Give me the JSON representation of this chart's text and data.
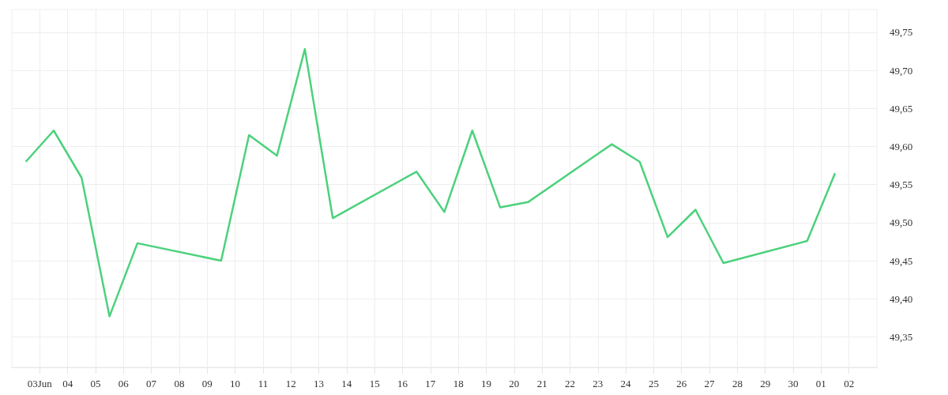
{
  "chart_data": {
    "type": "line",
    "x": [
      "--06-02T12:00",
      "--06-03T12:00",
      "--06-04T12:00",
      "--06-05T12:00",
      "--06-06T12:00",
      "--06-09T12:00",
      "--06-10T12:00",
      "--06-11T12:00",
      "--06-12T12:00",
      "--06-13T12:00",
      "--06-16T12:00",
      "--06-17T12:00",
      "--06-18T12:00",
      "--06-19T12:00",
      "--06-20T12:00",
      "--06-23T12:00",
      "--06-24T12:00",
      "--06-25T12:00",
      "--06-26T12:00",
      "--06-27T12:00",
      "--06-30T12:00",
      "--07-01T12:00"
    ],
    "series": [
      {
        "color": "#4cd17c",
        "values": [
          49.58,
          49.621,
          49.559,
          49.377,
          49.473,
          49.45,
          49.615,
          49.588,
          49.728,
          49.506,
          49.567,
          49.514,
          49.621,
          49.52,
          49.527,
          49.603,
          49.58,
          49.481,
          49.517,
          49.447,
          49.476,
          49.565
        ]
      }
    ],
    "xlim": [
      "--06-02",
      "--07-03"
    ],
    "xticks": [
      {
        "value": "--06-03",
        "label": "03Jun"
      },
      {
        "value": "--06-04",
        "label": "04"
      },
      {
        "value": "--06-05",
        "label": "05"
      },
      {
        "value": "--06-06",
        "label": "06"
      },
      {
        "value": "--06-07",
        "label": "07"
      },
      {
        "value": "--06-08",
        "label": "08"
      },
      {
        "value": "--06-09",
        "label": "09"
      },
      {
        "value": "--06-10",
        "label": "10"
      },
      {
        "value": "--06-11",
        "label": "11"
      },
      {
        "value": "--06-12",
        "label": "12"
      },
      {
        "value": "--06-13",
        "label": "13"
      },
      {
        "value": "--06-14",
        "label": "14"
      },
      {
        "value": "--06-15",
        "label": "15"
      },
      {
        "value": "--06-16",
        "label": "16"
      },
      {
        "value": "--06-17",
        "label": "17"
      },
      {
        "value": "--06-18",
        "label": "18"
      },
      {
        "value": "--06-19",
        "label": "19"
      },
      {
        "value": "--06-20",
        "label": "20"
      },
      {
        "value": "--06-21",
        "label": "21"
      },
      {
        "value": "--06-22",
        "label": "22"
      },
      {
        "value": "--06-23",
        "label": "23"
      },
      {
        "value": "--06-24",
        "label": "24"
      },
      {
        "value": "--06-25",
        "label": "25"
      },
      {
        "value": "--06-26",
        "label": "26"
      },
      {
        "value": "--06-27",
        "label": "27"
      },
      {
        "value": "--06-28",
        "label": "28"
      },
      {
        "value": "--06-29",
        "label": "29"
      },
      {
        "value": "--06-30",
        "label": "30"
      },
      {
        "value": "--07-01",
        "label": "01"
      },
      {
        "value": "--07-02",
        "label": "02"
      }
    ],
    "ylim": [
      49.31,
      49.78
    ],
    "yticks": [
      {
        "value": 49.35,
        "label": "49,35"
      },
      {
        "value": 49.4,
        "label": "49,40"
      },
      {
        "value": 49.45,
        "label": "49,45"
      },
      {
        "value": 49.5,
        "label": "49,50"
      },
      {
        "value": 49.55,
        "label": "49,55"
      },
      {
        "value": 49.6,
        "label": "49,60"
      },
      {
        "value": 49.65,
        "label": "49,65"
      },
      {
        "value": 49.7,
        "label": "49,70"
      },
      {
        "value": 49.75,
        "label": "49,75"
      }
    ],
    "grid": true,
    "marker": "none",
    "line_style": "solid"
  }
}
